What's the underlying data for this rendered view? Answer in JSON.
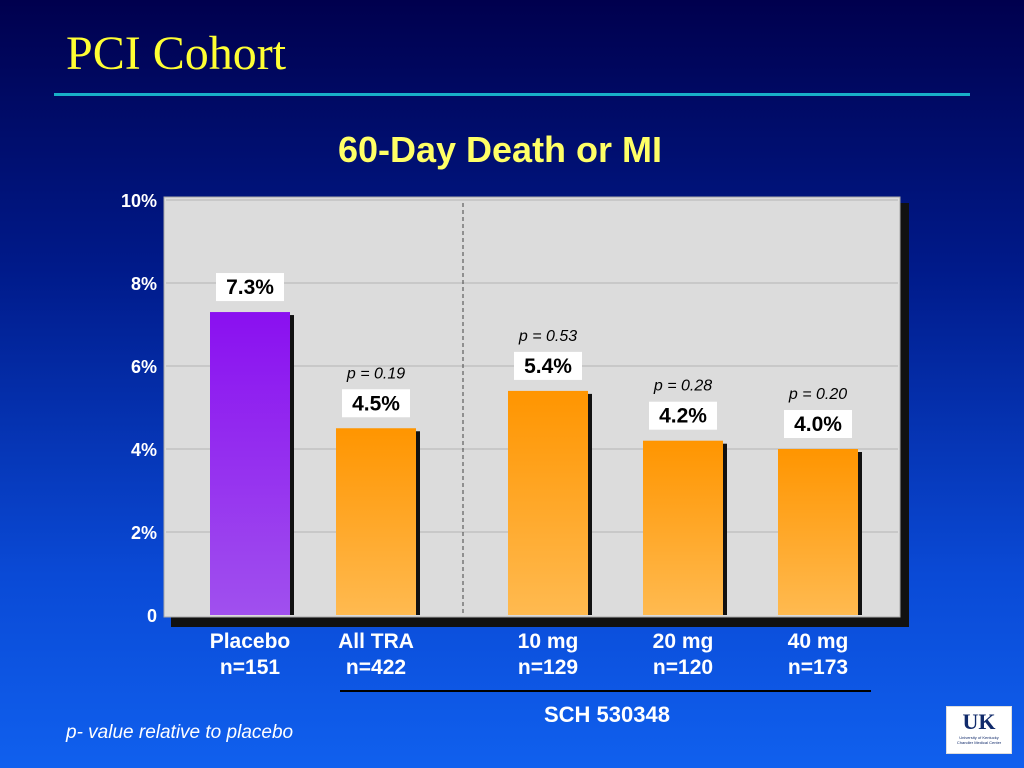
{
  "slide": {
    "title": "PCI Cohort",
    "footnote": "p- value relative to placebo",
    "logo": {
      "mark": "UK",
      "line1": "University of Kentucky",
      "line2": "Chandler Medical Center"
    }
  },
  "chart_data": {
    "type": "bar",
    "title": "60-Day Death or MI",
    "xlabel": "",
    "ylabel": "",
    "ylim": [
      0,
      10
    ],
    "yticks": [
      {
        "value": 0,
        "label": "0"
      },
      {
        "value": 2,
        "label": "2%"
      },
      {
        "value": 4,
        "label": "4%"
      },
      {
        "value": 6,
        "label": "6%"
      },
      {
        "value": 8,
        "label": "8%"
      },
      {
        "value": 10,
        "label": "10%"
      }
    ],
    "grid": true,
    "bars": [
      {
        "category": "Placebo",
        "n": "n=151",
        "value": 7.3,
        "label": "7.3%",
        "p": "",
        "color": "purple"
      },
      {
        "category": "All TRA",
        "n": "n=422",
        "value": 4.5,
        "label": "4.5%",
        "p": "p = 0.19",
        "color": "orange"
      },
      {
        "category": "10 mg",
        "n": "n=129",
        "value": 5.4,
        "label": "5.4%",
        "p": "p = 0.53",
        "color": "orange"
      },
      {
        "category": "20 mg",
        "n": "n=120",
        "value": 4.2,
        "label": "4.2%",
        "p": "p = 0.28",
        "color": "orange"
      },
      {
        "category": "40 mg",
        "n": "n=173",
        "value": 4.0,
        "label": "4.0%",
        "p": "p = 0.20",
        "color": "orange"
      }
    ],
    "group_label": "SCH 530348",
    "colors": {
      "purple_top": "#8a10f0",
      "purple_bottom": "#a050ee",
      "orange_top": "#ff9500",
      "orange_bottom": "#ffba50",
      "plot_bg": "#dcdcdc",
      "text_light": "#ffffff",
      "tick_text": "#ffffff",
      "gridline": "#b4b4b4",
      "separator": "#444444"
    }
  }
}
